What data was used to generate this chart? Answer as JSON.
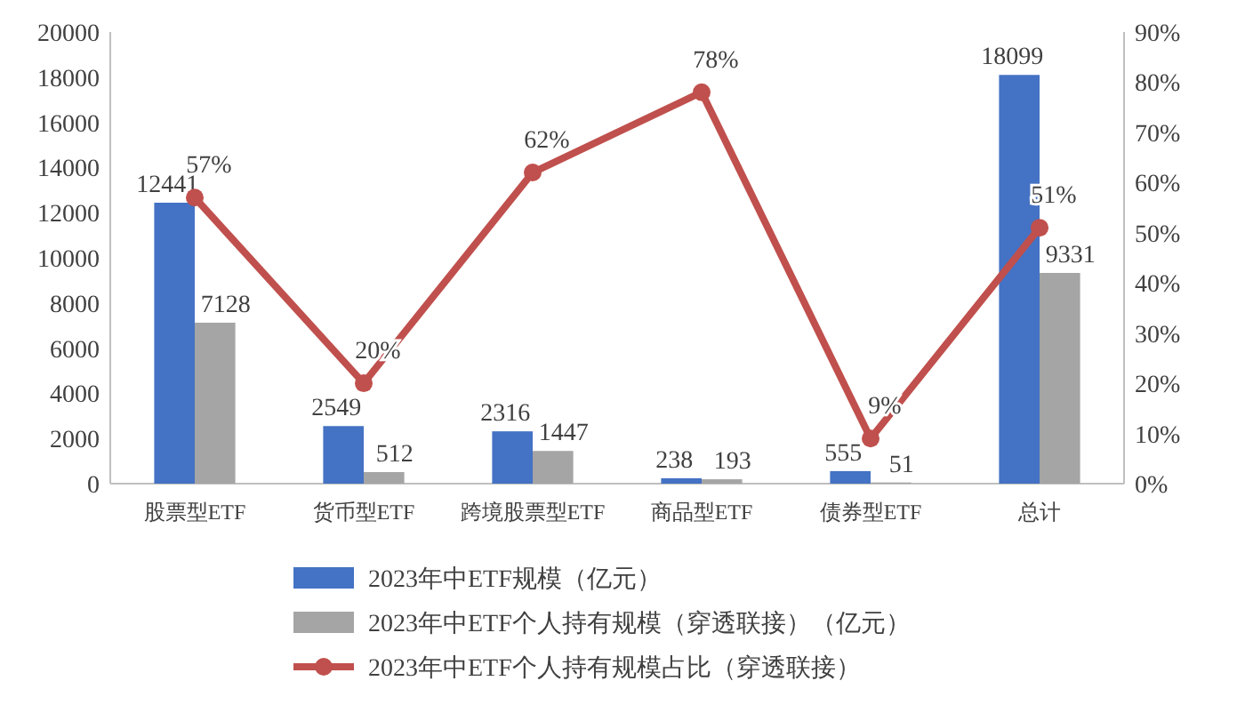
{
  "chart_data": {
    "type": "bar",
    "categories": [
      "股票型ETF",
      "货币型ETF",
      "跨境股票型ETF",
      "商品型ETF",
      "债券型ETF",
      "总计"
    ],
    "series": [
      {
        "name": "2023年中ETF规模（亿元）",
        "color": "#4472c4",
        "values": [
          12441,
          2549,
          2316,
          238,
          555,
          18099
        ]
      },
      {
        "name": "2023年中ETF个人持有规模（穿透联接）（亿元）",
        "color": "#a5a5a5",
        "values": [
          7128,
          512,
          1447,
          193,
          51,
          9331
        ]
      },
      {
        "name": "2023年中ETF个人持有规模占比（穿透联接）",
        "type": "line",
        "axis": "y2",
        "color": "#c0504d",
        "values": [
          57,
          20,
          62,
          78,
          9,
          51
        ],
        "value_labels": [
          "57%",
          "20%",
          "62%",
          "78%",
          "9%",
          "51%"
        ]
      }
    ],
    "ylim": [
      0,
      20000
    ],
    "yticks": [
      0,
      2000,
      4000,
      6000,
      8000,
      10000,
      12000,
      14000,
      16000,
      18000,
      20000
    ],
    "y2lim": [
      0,
      90
    ],
    "y2ticks": [
      {
        "value": 0,
        "label": "0%"
      },
      {
        "value": 10,
        "label": "10%"
      },
      {
        "value": 20,
        "label": "20%"
      },
      {
        "value": 30,
        "label": "30%"
      },
      {
        "value": 40,
        "label": "40%"
      },
      {
        "value": 50,
        "label": "50%"
      },
      {
        "value": 60,
        "label": "60%"
      },
      {
        "value": 70,
        "label": "70%"
      },
      {
        "value": 80,
        "label": "80%"
      },
      {
        "value": 90,
        "label": "90%"
      }
    ],
    "data_labels": true,
    "marker": "circle",
    "legend": "bottom",
    "grid": false
  }
}
